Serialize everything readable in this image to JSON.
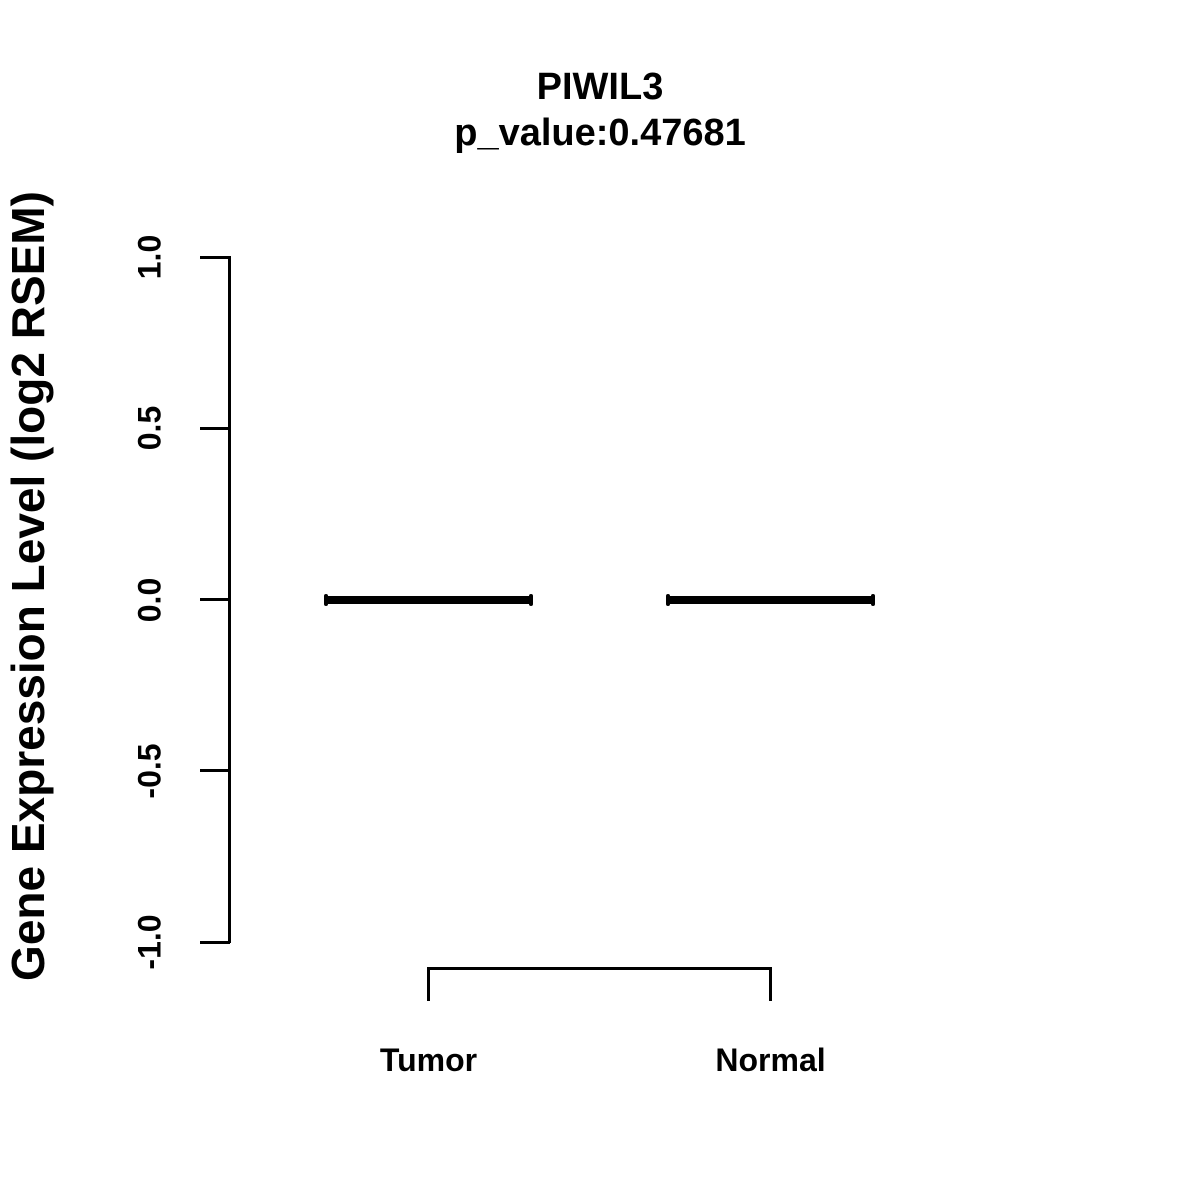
{
  "title": {
    "gene": "PIWIL3",
    "p_value_line": "p_value:0.47681"
  },
  "y_axis": {
    "label": "Gene Expression Level (log2 RSEM)",
    "ticks": [
      {
        "label": "1.0",
        "value": 1.0
      },
      {
        "label": "0.5",
        "value": 0.5
      },
      {
        "label": "0.0",
        "value": 0.0
      },
      {
        "label": "-0.5",
        "value": -0.5
      },
      {
        "label": "-1.0",
        "value": -1.0
      }
    ],
    "range": [
      -1.0,
      1.0
    ]
  },
  "groups": [
    {
      "label": "Tumor",
      "median": 0.0
    },
    {
      "label": "Normal",
      "median": 0.0
    }
  ],
  "colors": {
    "foreground": "#000000",
    "background": "#ffffff"
  },
  "chart_data": {
    "type": "box",
    "title": "PIWIL3",
    "subtitle": "p_value:0.47681",
    "categories": [
      "Tumor",
      "Normal"
    ],
    "series": [
      {
        "name": "Tumor",
        "median": 0.0,
        "q1": 0.0,
        "q3": 0.0,
        "whisker_low": 0.0,
        "whisker_high": 0.0
      },
      {
        "name": "Normal",
        "median": 0.0,
        "q1": 0.0,
        "q3": 0.0,
        "whisker_low": 0.0,
        "whisker_high": 0.0
      }
    ],
    "xlabel": "",
    "ylabel": "Gene Expression Level (log2 RSEM)",
    "ylim": [
      -1.0,
      1.0
    ],
    "yticks": [
      1.0,
      0.5,
      0.0,
      -0.5,
      -1.0
    ],
    "grid": false,
    "legend": false,
    "annotations": [
      "comparison bracket connecting Tumor and Normal below axis"
    ]
  }
}
